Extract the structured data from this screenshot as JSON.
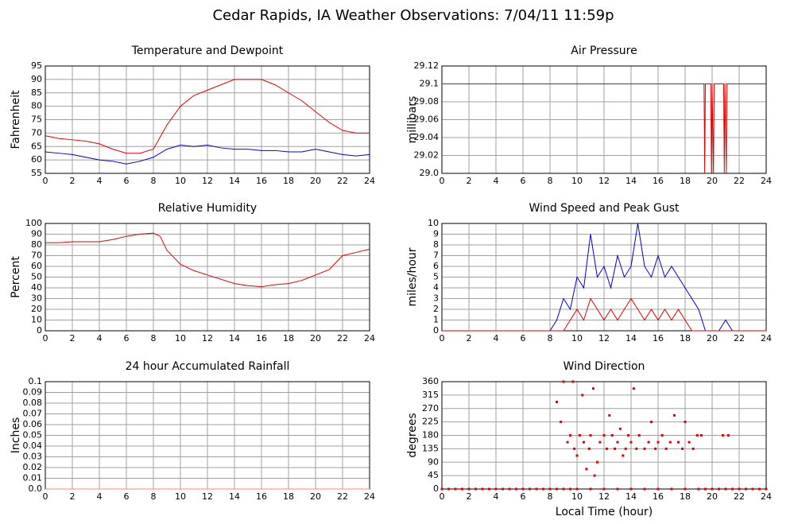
{
  "title": "Cedar Rapids, IA Weather Observations: 7/04/11 11:59p",
  "chart_data": [
    {
      "type": "line",
      "title": "Temperature and Dewpoint",
      "ylabel": "Fahrenheit",
      "grid": true,
      "xlim": [
        0,
        24
      ],
      "xticks": [
        0,
        2,
        4,
        6,
        8,
        10,
        12,
        14,
        16,
        18,
        20,
        22,
        24
      ],
      "ylim": [
        55,
        95
      ],
      "yticks": [
        55,
        60,
        65,
        70,
        75,
        80,
        85,
        90,
        95
      ],
      "x": [
        0,
        1,
        2,
        3,
        4,
        5,
        6,
        7,
        8,
        9,
        10,
        11,
        12,
        13,
        14,
        15,
        16,
        17,
        18,
        19,
        20,
        21,
        22,
        23,
        24
      ],
      "series": [
        {
          "color": "#e00000",
          "values": [
            69,
            68,
            67.5,
            67,
            66,
            64,
            62.5,
            62.5,
            64,
            73,
            80,
            84,
            86,
            88,
            90,
            90,
            90,
            88,
            85,
            82,
            78,
            74,
            71,
            70,
            70
          ]
        },
        {
          "color": "#0000d0",
          "values": [
            63,
            62.5,
            62,
            61,
            60,
            59.5,
            58.5,
            59.5,
            61,
            64,
            65.5,
            65,
            65.5,
            64.5,
            64,
            64,
            63.5,
            63.5,
            63,
            63,
            64,
            63,
            62,
            61.5,
            62
          ]
        }
      ]
    },
    {
      "type": "line",
      "title": "Air Pressure",
      "ylabel": "millibars",
      "grid": true,
      "xlim": [
        0,
        24
      ],
      "xticks": [
        0,
        2,
        4,
        6,
        8,
        10,
        12,
        14,
        16,
        18,
        20,
        22,
        24
      ],
      "ylim": [
        29.0,
        29.12
      ],
      "yticks": [
        {
          "value": 29.0,
          "label": "29.0"
        },
        29.02,
        29.04,
        29.06,
        29.08,
        29.1,
        29.12
      ],
      "x": [
        0,
        19.4,
        19.45,
        19.5,
        19.9,
        19.95,
        20.0,
        20.1,
        20.15,
        20.85,
        20.9,
        20.95,
        21.05,
        21.1,
        24
      ],
      "series": [
        {
          "color": "#e00000",
          "values": [
            29.1,
            29.1,
            29.0,
            29.1,
            29.1,
            29.0,
            29.1,
            29.0,
            29.1,
            29.1,
            29.0,
            29.1,
            29.0,
            29.1,
            29.1
          ]
        }
      ]
    },
    {
      "type": "line",
      "title": "Relative Humidity",
      "ylabel": "Percent",
      "grid": true,
      "xlim": [
        0,
        24
      ],
      "xticks": [
        0,
        2,
        4,
        6,
        8,
        10,
        12,
        14,
        16,
        18,
        20,
        22,
        24
      ],
      "ylim": [
        0,
        100
      ],
      "yticks": [
        0,
        10,
        20,
        30,
        40,
        50,
        60,
        70,
        80,
        90,
        100
      ],
      "x": [
        0,
        1,
        2,
        3,
        4,
        5,
        6,
        7,
        8,
        8.5,
        9,
        10,
        11,
        12,
        13,
        14,
        15,
        16,
        17,
        18,
        19,
        20,
        21,
        22,
        23,
        24
      ],
      "series": [
        {
          "color": "#e00000",
          "values": [
            82,
            82,
            83,
            83,
            83,
            85,
            88,
            90,
            91,
            88,
            75,
            62,
            56,
            52,
            48,
            44,
            42,
            41,
            43,
            44,
            47,
            52,
            57,
            70,
            73,
            76
          ]
        }
      ]
    },
    {
      "type": "line",
      "title": "Wind Speed and Peak Gust",
      "ylabel": "miles/hour",
      "grid": true,
      "xlim": [
        0,
        24
      ],
      "xticks": [
        0,
        2,
        4,
        6,
        8,
        10,
        12,
        14,
        16,
        18,
        20,
        22,
        24
      ],
      "ylim": [
        0,
        10
      ],
      "yticks": [
        0,
        1,
        2,
        3,
        4,
        5,
        6,
        7,
        8,
        9,
        10
      ],
      "x": [
        0,
        8,
        8.5,
        9,
        9.5,
        10,
        10.5,
        11,
        11.5,
        12,
        12.5,
        13,
        13.5,
        14,
        14.5,
        15,
        15.5,
        16,
        16.5,
        17,
        17.5,
        18,
        18.5,
        19,
        19.5,
        20.5,
        21,
        21.5,
        24
      ],
      "series": [
        {
          "color": "#0000d0",
          "values": [
            0,
            0,
            1,
            3,
            2,
            5,
            4,
            9,
            5,
            6,
            4,
            7,
            5,
            6,
            10,
            6,
            5,
            7,
            5,
            6,
            5,
            4,
            3,
            2,
            0,
            0,
            1,
            0,
            0
          ]
        },
        {
          "color": "#e00000",
          "values": [
            0,
            0,
            0,
            0,
            1,
            2,
            1,
            3,
            2,
            1,
            2,
            1,
            2,
            3,
            2,
            1,
            2,
            1,
            2,
            1,
            2,
            1,
            0,
            0,
            0,
            0,
            0,
            0,
            0
          ]
        }
      ]
    },
    {
      "type": "line",
      "title": "24 hour Accumulated Rainfall",
      "ylabel": "Inches",
      "grid": true,
      "xlim": [
        0,
        24
      ],
      "xticks": [
        0,
        2,
        4,
        6,
        8,
        10,
        12,
        14,
        16,
        18,
        20,
        22,
        24
      ],
      "ylim": [
        0,
        0.1
      ],
      "yticks": [
        {
          "value": 0,
          "label": "0.0"
        },
        0.01,
        0.02,
        0.03,
        0.04,
        0.05,
        0.06,
        0.07,
        0.08,
        0.09,
        0.1
      ],
      "x": [
        0,
        24
      ],
      "series": [
        {
          "color": "#ff8080",
          "values": [
            0,
            0
          ]
        }
      ]
    },
    {
      "type": "scatter",
      "title": "Wind Direction",
      "ylabel": "degrees",
      "xlabel": "Local Time (hour)",
      "grid": true,
      "xlim": [
        0,
        24
      ],
      "xticks": [
        0,
        2,
        4,
        6,
        8,
        10,
        12,
        14,
        16,
        18,
        20,
        22,
        24
      ],
      "ylim": [
        0,
        360
      ],
      "yticks": [
        0,
        45,
        90,
        135,
        180,
        225,
        270,
        315,
        360
      ],
      "x": [
        0,
        0.5,
        1,
        1.5,
        2,
        2.5,
        3,
        3.5,
        4,
        4.5,
        5,
        5.5,
        6,
        6.5,
        7,
        7.5,
        8,
        8.5,
        9,
        9.5,
        10,
        11,
        12,
        13,
        14,
        15,
        16,
        17,
        18,
        19,
        19.5,
        20,
        20.5,
        21,
        21.5,
        22,
        22.5,
        23,
        23.5,
        24,
        8.5,
        8.8,
        9,
        9.3,
        9.5,
        9.7,
        9.8,
        10,
        10.2,
        10.4,
        10.5,
        10.7,
        10.9,
        11,
        11.2,
        11.3,
        11.5,
        11.7,
        12,
        12.2,
        12.4,
        12.6,
        12.8,
        13,
        13.2,
        13.4,
        13.6,
        13.8,
        14,
        14.2,
        14.4,
        14.6,
        15,
        15.3,
        15.5,
        15.8,
        16,
        16.3,
        16.6,
        16.9,
        17.2,
        17.5,
        17.8,
        18,
        18.3,
        18.6,
        18.9,
        19.2,
        20.8,
        21.2
      ],
      "series": [
        {
          "color": "#e00000",
          "values": [
            0,
            0,
            0,
            0,
            0,
            0,
            0,
            0,
            0,
            0,
            0,
            0,
            0,
            0,
            0,
            0,
            0,
            0,
            0,
            0,
            0,
            0,
            0,
            0,
            0,
            0,
            0,
            0,
            0,
            0,
            0,
            0,
            0,
            0,
            0,
            0,
            0,
            0,
            0,
            0,
            292,
            225,
            360,
            157,
            180,
            360,
            135,
            112,
            180,
            315,
            157,
            67,
            135,
            180,
            337,
            45,
            90,
            157,
            180,
            135,
            247,
            180,
            135,
            157,
            202,
            112,
            135,
            180,
            157,
            337,
            135,
            180,
            135,
            157,
            225,
            135,
            157,
            180,
            135,
            157,
            247,
            157,
            135,
            225,
            157,
            135,
            180,
            180,
            180,
            180
          ]
        }
      ]
    }
  ]
}
